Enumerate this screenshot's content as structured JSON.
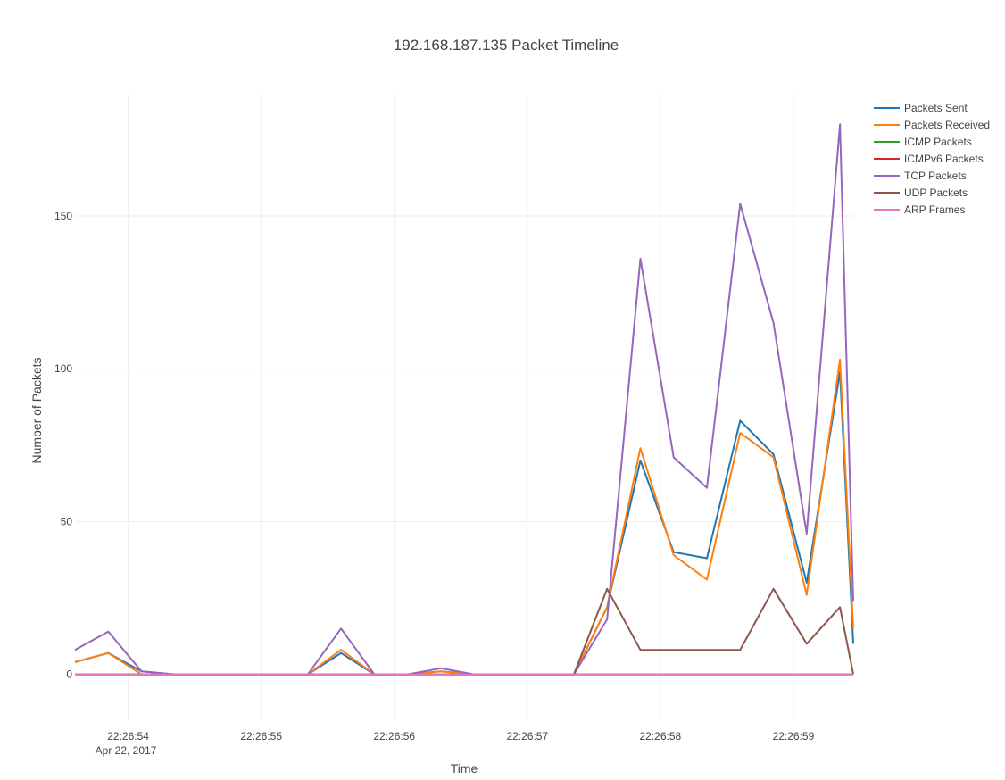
{
  "chart_data": {
    "type": "line",
    "title": "192.168.187.135 Packet Timeline",
    "xlabel": "Time",
    "ylabel": "Number of Packets",
    "date_caption": "Apr 22, 2017",
    "x": [
      "22:26:53.6",
      "22:26:53.85",
      "22:26:54.1",
      "22:26:54.35",
      "22:26:54.6",
      "22:26:54.85",
      "22:26:55.1",
      "22:26:55.35",
      "22:26:55.6",
      "22:26:55.85",
      "22:26:56.1",
      "22:26:56.35",
      "22:26:56.6",
      "22:26:56.85",
      "22:26:57.1",
      "22:26:57.35",
      "22:26:57.6",
      "22:26:57.85",
      "22:26:58.1",
      "22:26:58.35",
      "22:26:58.6",
      "22:26:58.85",
      "22:26:59.1",
      "22:26:59.35",
      "22:26:59.45"
    ],
    "x_range": [
      "22:26:53.6",
      "22:26:59.45"
    ],
    "x_ticks": [
      {
        "t": "22:26:54",
        "label": "22:26:54"
      },
      {
        "t": "22:26:55",
        "label": "22:26:55"
      },
      {
        "t": "22:26:56",
        "label": "22:26:56"
      },
      {
        "t": "22:26:57",
        "label": "22:26:57"
      },
      {
        "t": "22:26:58",
        "label": "22:26:58"
      },
      {
        "t": "22:26:59",
        "label": "22:26:59"
      }
    ],
    "ylim": [
      -15,
      190
    ],
    "y_ticks": [
      0,
      50,
      100,
      150
    ],
    "grid": true,
    "legend_position": "top-right",
    "series": [
      {
        "name": "Packets Sent",
        "color": "#1f77b4",
        "values": [
          4,
          7,
          1,
          0,
          0,
          0,
          0,
          0,
          7,
          0,
          0,
          1,
          0,
          0,
          0,
          0,
          22,
          70,
          40,
          38,
          83,
          72,
          30,
          99,
          10
        ]
      },
      {
        "name": "Packets Received",
        "color": "#ff7f0e",
        "values": [
          4,
          7,
          0,
          0,
          0,
          0,
          0,
          0,
          8,
          0,
          0,
          1,
          0,
          0,
          0,
          0,
          22,
          74,
          39,
          31,
          79,
          71,
          26,
          103,
          15
        ]
      },
      {
        "name": "ICMP Packets",
        "color": "#2ca02c",
        "values": [
          0,
          0,
          0,
          0,
          0,
          0,
          0,
          0,
          0,
          0,
          0,
          0,
          0,
          0,
          0,
          0,
          0,
          0,
          0,
          0,
          0,
          0,
          0,
          0,
          0
        ]
      },
      {
        "name": "ICMPv6 Packets",
        "color": "#d62728",
        "values": [
          0,
          0,
          0,
          0,
          0,
          0,
          0,
          0,
          0,
          0,
          0,
          0,
          0,
          0,
          0,
          0,
          0,
          0,
          0,
          0,
          0,
          0,
          0,
          0,
          0
        ]
      },
      {
        "name": "TCP Packets",
        "color": "#9467bd",
        "values": [
          8,
          14,
          1,
          0,
          0,
          0,
          0,
          0,
          15,
          0,
          0,
          2,
          0,
          0,
          0,
          0,
          18,
          136,
          71,
          61,
          154,
          115,
          46,
          180,
          24
        ]
      },
      {
        "name": "UDP Packets",
        "color": "#8c564b",
        "values": [
          0,
          0,
          0,
          0,
          0,
          0,
          0,
          0,
          0,
          0,
          0,
          0,
          0,
          0,
          0,
          0,
          28,
          8,
          8,
          8,
          8,
          28,
          10,
          22,
          0
        ]
      },
      {
        "name": "ARP Frames",
        "color": "#e377c2",
        "values": [
          0,
          0,
          0,
          0,
          0,
          0,
          0,
          0,
          0,
          0,
          0,
          0,
          0,
          0,
          0,
          0,
          0,
          0,
          0,
          0,
          0,
          0,
          0,
          0,
          0
        ]
      }
    ]
  }
}
